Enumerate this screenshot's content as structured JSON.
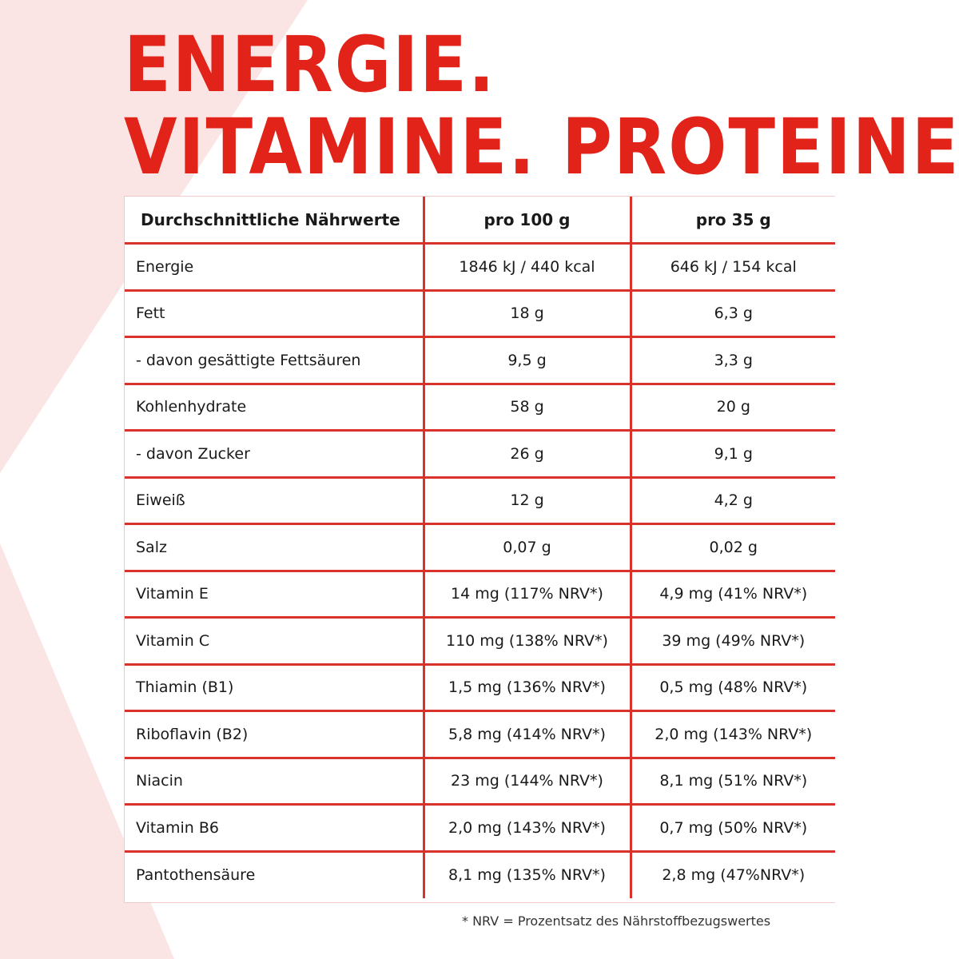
{
  "headline": {
    "line1": "ENERGIE.",
    "line2": "VITAMINE. PROTEINE."
  },
  "colors": {
    "accent": "#e2231a",
    "table_lines": "#d8322b",
    "background_shape": "#fbe4e4"
  },
  "table": {
    "headers": [
      "Durchschnittliche Nährwerte",
      "pro 100 g",
      "pro 35 g"
    ],
    "rows": [
      [
        "Energie",
        "1846 kJ / 440 kcal",
        "646 kJ / 154 kcal"
      ],
      [
        "Fett",
        "18 g",
        "6,3 g"
      ],
      [
        "- davon gesättigte Fettsäuren",
        "9,5 g",
        "3,3 g"
      ],
      [
        "Kohlenhydrate",
        "58 g",
        "20 g"
      ],
      [
        "- davon Zucker",
        "26 g",
        "9,1 g"
      ],
      [
        "Eiweiß",
        "12 g",
        "4,2 g"
      ],
      [
        "Salz",
        "0,07 g",
        "0,02 g"
      ],
      [
        "Vitamin E",
        "14 mg (117% NRV*)",
        "4,9 mg (41% NRV*)"
      ],
      [
        "Vitamin C",
        "110 mg (138% NRV*)",
        "39 mg (49% NRV*)"
      ],
      [
        "Thiamin (B1)",
        "1,5 mg (136% NRV*)",
        "0,5 mg (48% NRV*)"
      ],
      [
        "Riboflavin (B2)",
        "5,8 mg (414% NRV*)",
        "2,0 mg (143% NRV*)"
      ],
      [
        "Niacin",
        "23 mg (144% NRV*)",
        "8,1 mg (51% NRV*)"
      ],
      [
        "Vitamin B6",
        "2,0 mg (143% NRV*)",
        "0,7 mg (50% NRV*)"
      ],
      [
        "Pantothensäure",
        "8,1 mg (135% NRV*)",
        "2,8 mg (47%NRV*)"
      ]
    ]
  },
  "footnote": "* NRV = Prozentsatz des Nährstoffbezugswertes"
}
